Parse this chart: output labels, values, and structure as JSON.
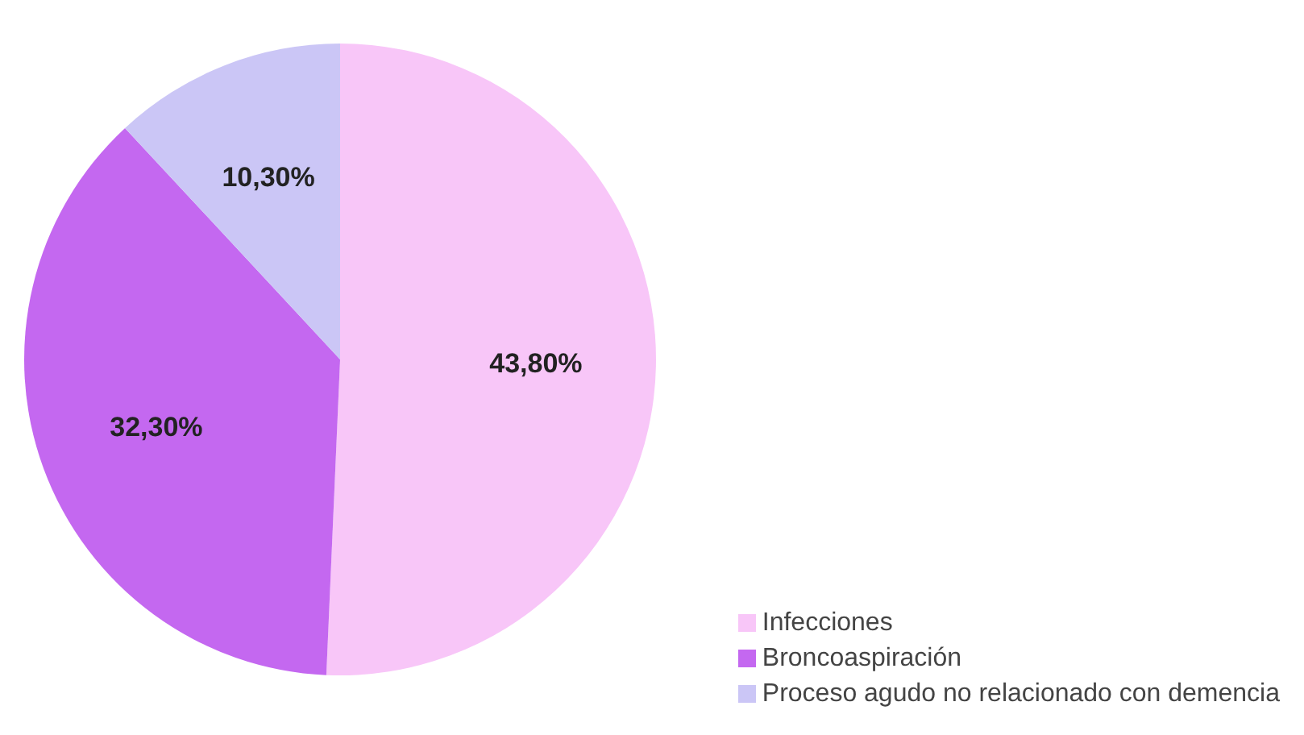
{
  "chart_data": {
    "type": "pie",
    "categories": [
      "Infecciones",
      "Broncoaspiración",
      "Proceso agudo no relacionado con demencia"
    ],
    "values": [
      43.8,
      32.3,
      10.3
    ],
    "value_labels": [
      "43,80%",
      "32,30%",
      "10,30%"
    ],
    "colors": [
      "#f8c6f8",
      "#c468f0",
      "#cbc6f6"
    ],
    "legend": "bottom right"
  }
}
